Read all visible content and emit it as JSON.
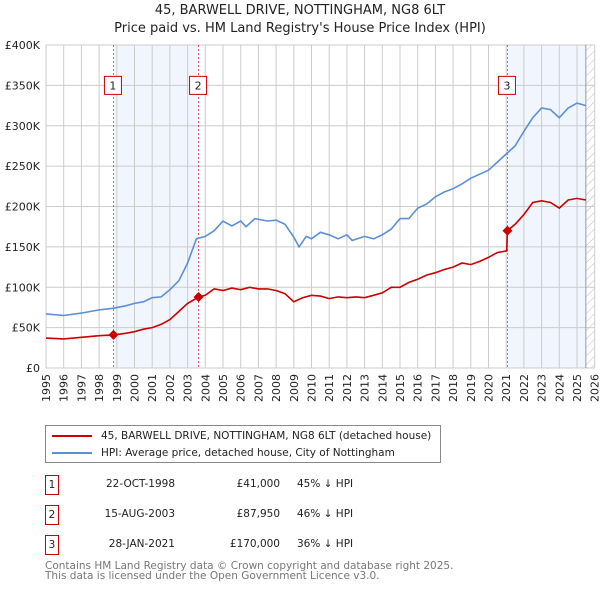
{
  "chart_data": {
    "type": "line",
    "title": "45, BARWELL DRIVE, NOTTINGHAM, NG8 6LT",
    "subtitle": "Price paid vs. HM Land Registry's House Price Index (HPI)",
    "xlim": [
      1995,
      2026
    ],
    "ylim": [
      0,
      400000
    ],
    "x_ticks": [
      "1995",
      "1996",
      "1997",
      "1998",
      "1999",
      "2000",
      "2001",
      "2002",
      "2003",
      "2004",
      "2005",
      "2006",
      "2007",
      "2008",
      "2009",
      "2010",
      "2011",
      "2012",
      "2013",
      "2014",
      "2015",
      "2016",
      "2017",
      "2018",
      "2019",
      "2020",
      "2021",
      "2022",
      "2023",
      "2024",
      "2025",
      "2026"
    ],
    "y_ticks": [
      {
        "v": 0,
        "label": "£0"
      },
      {
        "v": 50000,
        "label": "£50K"
      },
      {
        "v": 100000,
        "label": "£100K"
      },
      {
        "v": 150000,
        "label": "£150K"
      },
      {
        "v": 200000,
        "label": "£200K"
      },
      {
        "v": 250000,
        "label": "£250K"
      },
      {
        "v": 300000,
        "label": "£300K"
      },
      {
        "v": 350000,
        "label": "£350K"
      },
      {
        "v": 400000,
        "label": "£400K"
      }
    ],
    "grid": true,
    "forecast_hatch_from": 2025.5,
    "series": [
      {
        "name": "45, BARWELL DRIVE, NOTTINGHAM, NG8 6LT (detached house)",
        "color": "#cc0000",
        "x": [
          1995,
          1996,
          1997,
          1998,
          1998.81,
          1999.5,
          2000,
          2000.5,
          2001,
          2001.5,
          2002,
          2002.5,
          2003,
          2003.62,
          2004,
          2004.5,
          2005,
          2005.5,
          2006,
          2006.5,
          2007,
          2007.5,
          2008,
          2008.5,
          2009,
          2009.5,
          2010,
          2010.5,
          2011,
          2011.5,
          2012,
          2012.5,
          2013,
          2013.5,
          2014,
          2014.5,
          2015,
          2015.5,
          2016,
          2016.5,
          2017,
          2017.5,
          2018,
          2018.5,
          2019,
          2019.5,
          2020,
          2020.5,
          2021.03,
          2021.07,
          2021.5,
          2022,
          2022.5,
          2023,
          2023.5,
          2024,
          2024.5,
          2025,
          2025.5
        ],
        "y": [
          37000,
          36000,
          38000,
          40000,
          41000,
          43000,
          45000,
          48000,
          50000,
          54000,
          60000,
          70000,
          80000,
          87950,
          90000,
          98000,
          96000,
          99000,
          97000,
          100000,
          98000,
          98000,
          96000,
          92000,
          82000,
          87000,
          90000,
          89000,
          86000,
          88000,
          87000,
          88000,
          87000,
          90000,
          93000,
          100000,
          100000,
          106000,
          110000,
          115000,
          118000,
          122000,
          125000,
          130000,
          128000,
          132000,
          137000,
          143000,
          145000,
          170000,
          178000,
          190000,
          205000,
          207000,
          205000,
          198000,
          208000,
          210000,
          208000
        ]
      },
      {
        "name": "HPI: Average price, detached house, City of Nottingham",
        "color": "#5b8fd6",
        "x": [
          1995,
          1996,
          1997,
          1998,
          1998.81,
          1999.5,
          2000,
          2000.5,
          2001,
          2001.5,
          2002,
          2002.5,
          2003,
          2003.5,
          2004,
          2004.5,
          2005,
          2005.5,
          2006,
          2006.3,
          2006.8,
          2007.5,
          2008,
          2008.5,
          2009,
          2009.3,
          2009.7,
          2010,
          2010.5,
          2011,
          2011.5,
          2012,
          2012.3,
          2013,
          2013.5,
          2014,
          2014.5,
          2015,
          2015.5,
          2016,
          2016.5,
          2017,
          2017.5,
          2018,
          2018.5,
          2019,
          2019.5,
          2020,
          2020.5,
          2021,
          2021.5,
          2022,
          2022.5,
          2023,
          2023.5,
          2024,
          2024.5,
          2025,
          2025.5
        ],
        "y": [
          67000,
          65000,
          68000,
          72000,
          74000,
          77000,
          80000,
          82000,
          87000,
          88000,
          97000,
          108000,
          130000,
          160000,
          163000,
          170000,
          182000,
          176000,
          182000,
          175000,
          185000,
          182000,
          183000,
          178000,
          162000,
          150000,
          163000,
          160000,
          168000,
          165000,
          160000,
          165000,
          158000,
          163000,
          160000,
          165000,
          172000,
          185000,
          185000,
          198000,
          203000,
          212000,
          218000,
          222000,
          228000,
          235000,
          240000,
          245000,
          255000,
          265000,
          275000,
          293000,
          310000,
          322000,
          320000,
          310000,
          322000,
          328000,
          325000
        ]
      }
    ],
    "sales": [
      {
        "id": "1",
        "x": 1998.81,
        "price": 41000
      },
      {
        "id": "2",
        "x": 2003.62,
        "price": 87950
      },
      {
        "id": "3",
        "x": 2021.07,
        "price": 170000
      }
    ],
    "shaded_ranges": [
      [
        1998.81,
        2003.62
      ],
      [
        2021.07,
        2025.5
      ]
    ]
  },
  "legend": {
    "property": "45, BARWELL DRIVE, NOTTINGHAM, NG8 6LT (detached house)",
    "hpi": "HPI: Average price, detached house, City of Nottingham"
  },
  "transactions": [
    {
      "id": "1",
      "date": "22-OCT-1998",
      "price": "£41,000",
      "hpi": "45% ↓ HPI"
    },
    {
      "id": "2",
      "date": "15-AUG-2003",
      "price": "£87,950",
      "hpi": "46% ↓ HPI"
    },
    {
      "id": "3",
      "date": "28-JAN-2021",
      "price": "£170,000",
      "hpi": "36% ↓ HPI"
    }
  ],
  "footer": {
    "line1": "Contains HM Land Registry data © Crown copyright and database right 2025.",
    "line2": "This data is licensed under the Open Government Licence v3.0."
  }
}
